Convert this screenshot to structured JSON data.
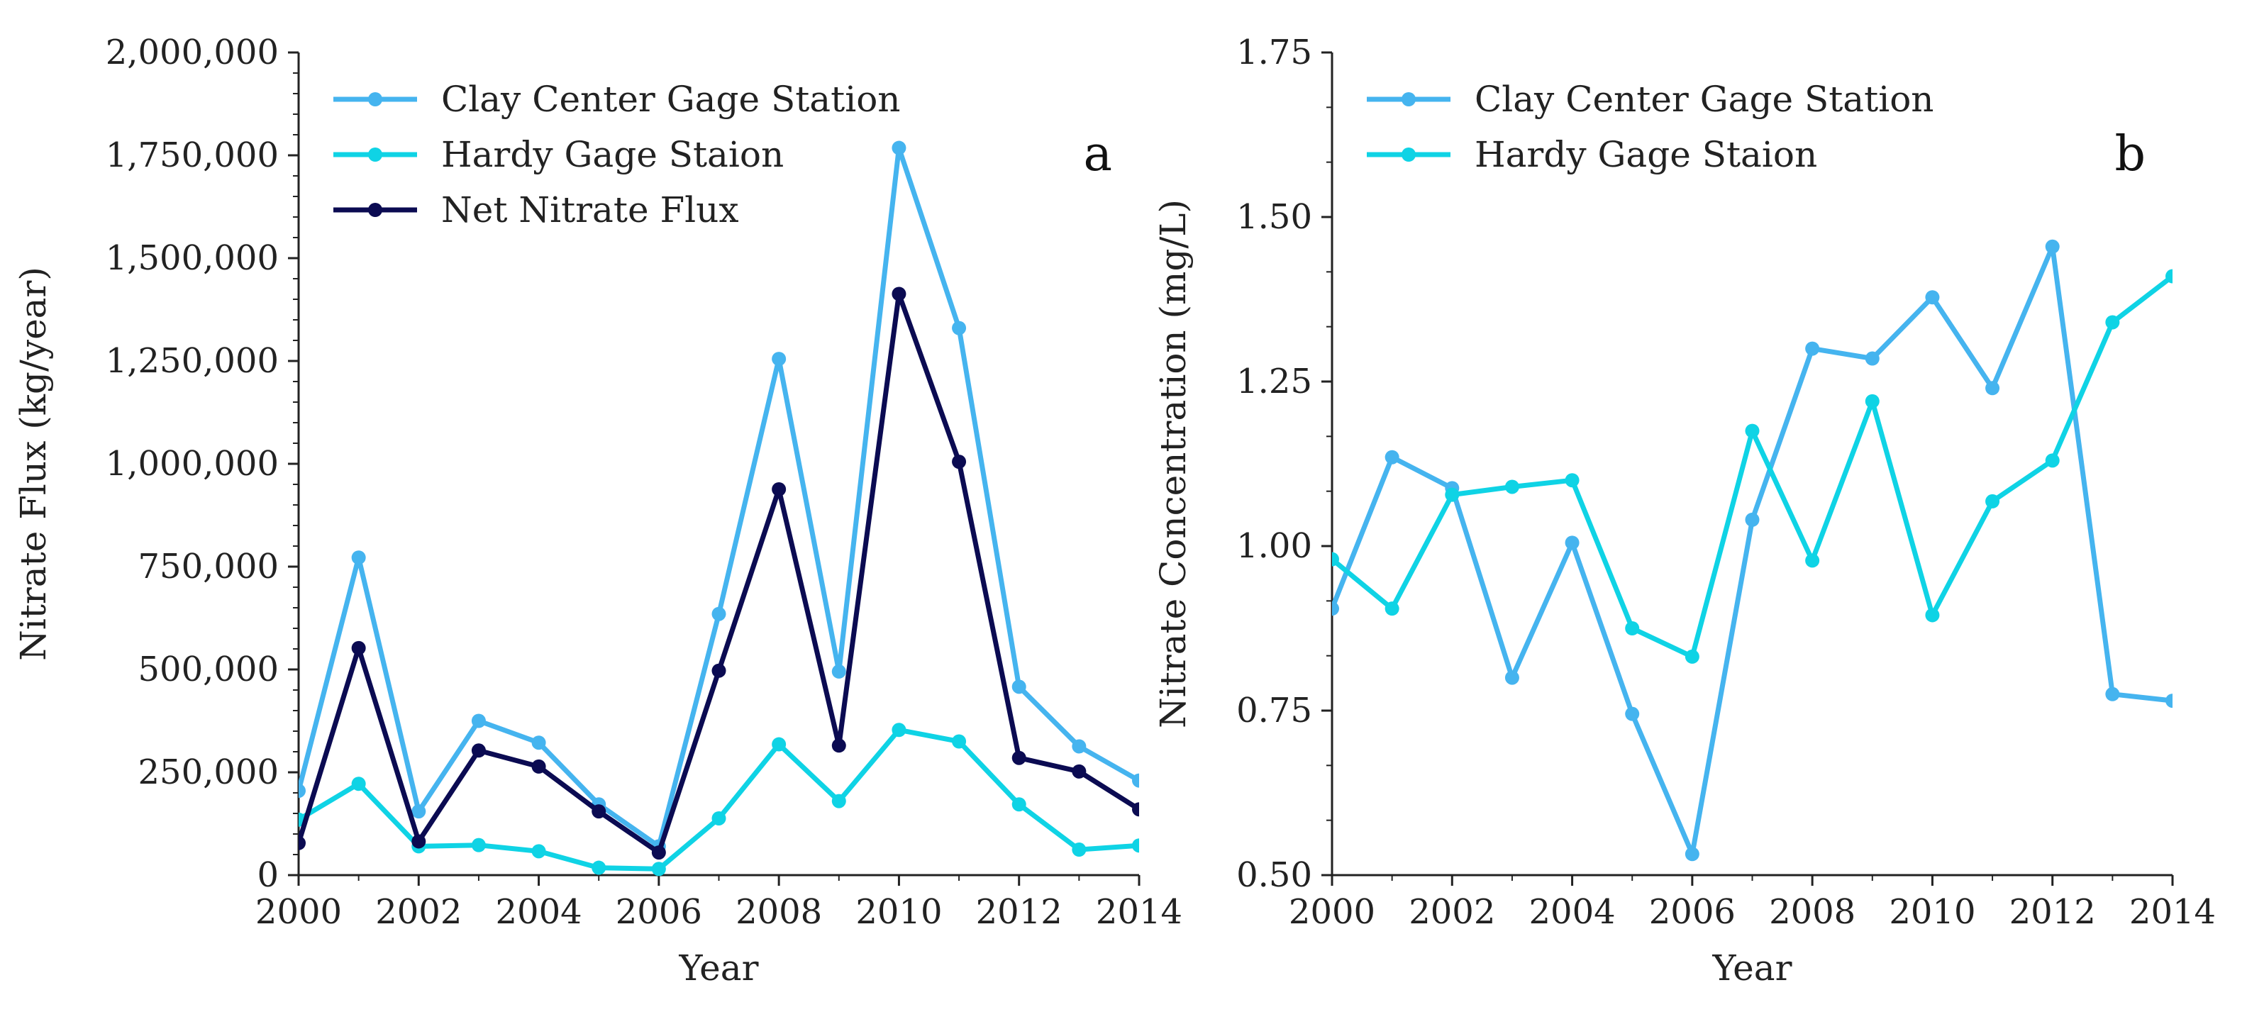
{
  "chart_data": [
    {
      "type": "line",
      "panel": "a",
      "title": "",
      "xlabel": "Year",
      "ylabel": "Nitrate Flux (kg/year)",
      "xlim": [
        2000,
        2014
      ],
      "ylim": [
        0,
        2000000
      ],
      "x_ticks": [
        2000,
        2002,
        2004,
        2006,
        2008,
        2010,
        2012,
        2014
      ],
      "x_tick_labels": [
        "2000",
        "2002",
        "2004",
        "2006",
        "2008",
        "2010",
        "2012",
        "2014"
      ],
      "y_ticks": [
        0,
        250000,
        500000,
        750000,
        1000000,
        1250000,
        1500000,
        1750000,
        2000000
      ],
      "y_tick_labels": [
        "0",
        "250,000",
        "500,000",
        "750,000",
        "1,000,000",
        "1,250,000",
        "1,500,000",
        "1,750,000",
        "2,000,000"
      ],
      "legend_position": "top-left",
      "x": [
        2000,
        2001,
        2002,
        2003,
        2004,
        2005,
        2006,
        2007,
        2008,
        2009,
        2010,
        2011,
        2012,
        2013,
        2014
      ],
      "series": [
        {
          "name": "Clay Center Gage Station",
          "color": "#45b4ef",
          "values": [
            205000,
            772000,
            155000,
            375000,
            322000,
            172000,
            70000,
            635000,
            1255000,
            495000,
            1768000,
            1330000,
            458000,
            313000,
            230000
          ]
        },
        {
          "name": "Hardy Gage Staion",
          "color": "#0fd3e5",
          "values": [
            135000,
            222000,
            70000,
            73000,
            58000,
            18000,
            15000,
            138000,
            318000,
            180000,
            353000,
            325000,
            172000,
            62000,
            72000
          ]
        },
        {
          "name": "Net Nitrate Flux",
          "color": "#0b0b52",
          "values": [
            78000,
            552000,
            82000,
            303000,
            264000,
            155000,
            55000,
            497000,
            938000,
            315000,
            1413000,
            1005000,
            285000,
            252000,
            160000
          ]
        }
      ]
    },
    {
      "type": "line",
      "panel": "b",
      "title": "",
      "xlabel": "Year",
      "ylabel": "Nitrate Concentration (mg/L)",
      "xlim": [
        2000,
        2014
      ],
      "ylim": [
        0.5,
        1.75
      ],
      "x_ticks": [
        2000,
        2002,
        2004,
        2006,
        2008,
        2010,
        2012,
        2014
      ],
      "x_tick_labels": [
        "2000",
        "2002",
        "2004",
        "2006",
        "2008",
        "2010",
        "2012",
        "2014"
      ],
      "y_ticks": [
        0.5,
        0.75,
        1.0,
        1.25,
        1.5,
        1.75
      ],
      "y_tick_labels": [
        "0.50",
        "0.75",
        "1.00",
        "1.25",
        "1.50",
        "1.75"
      ],
      "legend_position": "top-left",
      "x": [
        2000,
        2001,
        2002,
        2003,
        2004,
        2005,
        2006,
        2007,
        2008,
        2009,
        2010,
        2011,
        2012,
        2013,
        2014
      ],
      "series": [
        {
          "name": "Clay Center Gage Station",
          "color": "#45b4ef",
          "values": [
            0.905,
            1.135,
            1.088,
            0.8,
            1.005,
            0.745,
            0.532,
            1.04,
            1.3,
            1.285,
            1.378,
            1.24,
            1.455,
            0.775,
            0.765
          ]
        },
        {
          "name": "Hardy Gage Staion",
          "color": "#0fd3e5",
          "values": [
            0.98,
            0.905,
            1.078,
            1.09,
            1.1,
            0.875,
            0.832,
            1.175,
            0.978,
            1.22,
            0.895,
            1.068,
            1.13,
            1.34,
            1.41
          ]
        }
      ]
    }
  ]
}
